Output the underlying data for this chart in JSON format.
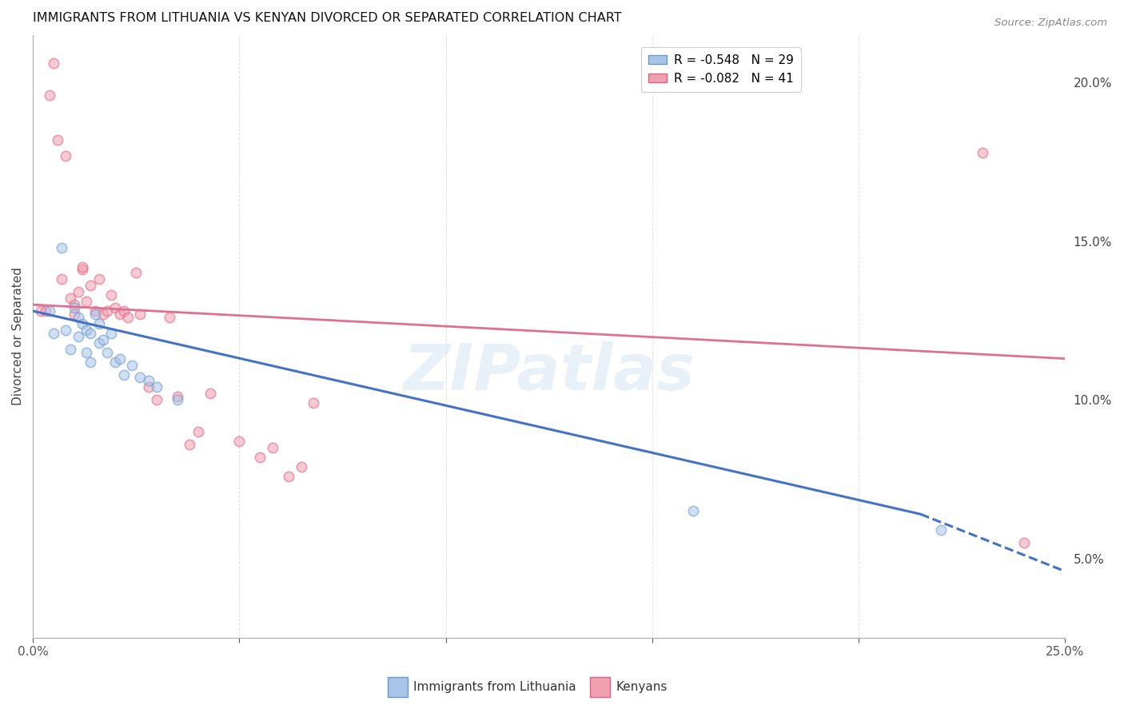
{
  "title": "IMMIGRANTS FROM LITHUANIA VS KENYAN DIVORCED OR SEPARATED CORRELATION CHART",
  "source": "Source: ZipAtlas.com",
  "ylabel": "Divorced or Separated",
  "x_min": 0.0,
  "x_max": 0.25,
  "y_min": 0.025,
  "y_max": 0.215,
  "x_ticks": [
    0.0,
    0.05,
    0.1,
    0.15,
    0.2,
    0.25
  ],
  "x_tick_labels_show": [
    "0.0%",
    "",
    "",
    "",
    "",
    "25.0%"
  ],
  "y_ticks_right": [
    0.05,
    0.1,
    0.15,
    0.2
  ],
  "y_tick_labels_right": [
    "5.0%",
    "10.0%",
    "15.0%",
    "20.0%"
  ],
  "watermark": "ZIPatlas",
  "scatter_blue": {
    "x": [
      0.004,
      0.005,
      0.007,
      0.008,
      0.009,
      0.01,
      0.011,
      0.011,
      0.012,
      0.013,
      0.013,
      0.014,
      0.014,
      0.015,
      0.016,
      0.016,
      0.017,
      0.018,
      0.019,
      0.02,
      0.021,
      0.022,
      0.024,
      0.026,
      0.028,
      0.03,
      0.035,
      0.16,
      0.22
    ],
    "y": [
      0.128,
      0.121,
      0.148,
      0.122,
      0.116,
      0.129,
      0.126,
      0.12,
      0.124,
      0.122,
      0.115,
      0.121,
      0.112,
      0.127,
      0.124,
      0.118,
      0.119,
      0.115,
      0.121,
      0.112,
      0.113,
      0.108,
      0.111,
      0.107,
      0.106,
      0.104,
      0.1,
      0.065,
      0.059
    ]
  },
  "scatter_pink": {
    "x": [
      0.002,
      0.003,
      0.004,
      0.005,
      0.006,
      0.007,
      0.008,
      0.009,
      0.01,
      0.01,
      0.011,
      0.012,
      0.012,
      0.013,
      0.014,
      0.015,
      0.016,
      0.017,
      0.018,
      0.019,
      0.02,
      0.021,
      0.022,
      0.023,
      0.025,
      0.026,
      0.028,
      0.03,
      0.033,
      0.035,
      0.038,
      0.04,
      0.043,
      0.05,
      0.055,
      0.058,
      0.062,
      0.065,
      0.068,
      0.24,
      0.23
    ],
    "y": [
      0.128,
      0.128,
      0.196,
      0.206,
      0.182,
      0.138,
      0.177,
      0.132,
      0.13,
      0.127,
      0.134,
      0.141,
      0.142,
      0.131,
      0.136,
      0.128,
      0.138,
      0.127,
      0.128,
      0.133,
      0.129,
      0.127,
      0.128,
      0.126,
      0.14,
      0.127,
      0.104,
      0.1,
      0.126,
      0.101,
      0.086,
      0.09,
      0.102,
      0.087,
      0.082,
      0.085,
      0.076,
      0.079,
      0.099,
      0.055,
      0.178
    ]
  },
  "trend_blue": {
    "x_start": 0.0,
    "y_start": 0.128,
    "x_solid_end": 0.215,
    "y_solid_end": 0.064,
    "x_dash_end": 0.25,
    "y_dash_end": 0.046,
    "color": "#4472c4",
    "linewidth": 2.2
  },
  "trend_pink": {
    "x_start": 0.0,
    "y_start": 0.13,
    "x_end": 0.25,
    "y_end": 0.113,
    "color": "#e07090",
    "linewidth": 2.0
  },
  "blue_face_color": "#aac4e8",
  "blue_edge_color": "#6699cc",
  "pink_face_color": "#f0a0b0",
  "pink_edge_color": "#e06080",
  "marker_size": 80,
  "marker_alpha": 0.55,
  "background_color": "#ffffff",
  "grid_color": "#cccccc",
  "legend_blue_face": "#aac4e8",
  "legend_blue_edge": "#6699cc",
  "legend_pink_face": "#f0a0b0",
  "legend_pink_edge": "#e06080",
  "legend_label_blue": "R = -0.548   N = 29",
  "legend_label_pink": "R = -0.082   N = 41",
  "bottom_label_blue": "Immigrants from Lithuania",
  "bottom_label_pink": "Kenyans"
}
